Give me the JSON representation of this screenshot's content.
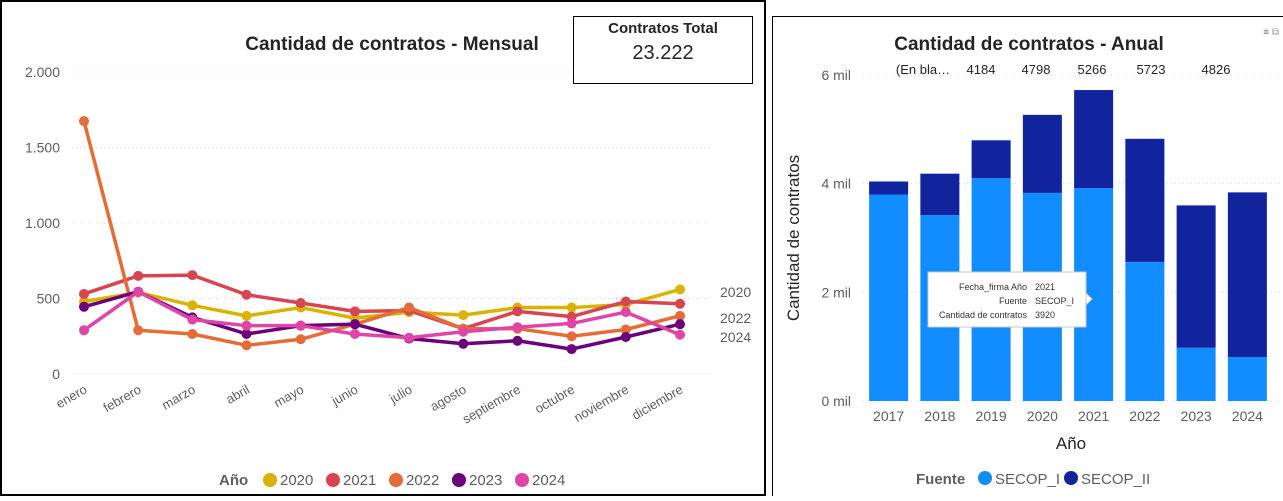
{
  "kpi": {
    "label": "Contratos Total",
    "value": "23.222"
  },
  "chart_data": [
    {
      "type": "line",
      "title": "Cantidad de contratos - Mensual",
      "xlabel": "",
      "ylabel": "",
      "categories": [
        "enero",
        "febrero",
        "marzo",
        "abril",
        "mayo",
        "junio",
        "julio",
        "agosto",
        "septiembre",
        "octubre",
        "noviembre",
        "diciembre"
      ],
      "ylim": [
        0,
        2000
      ],
      "yticks": [
        0,
        500,
        1000,
        1500,
        2000
      ],
      "ytick_labels": [
        "0",
        "500",
        "1.000",
        "1.500",
        "2.000"
      ],
      "legend_title": "Año",
      "legend_position": "bottom",
      "grid": true,
      "end_labels": [
        "2020",
        "2022",
        "2024"
      ],
      "series": [
        {
          "name": "2020",
          "color": "#D9B300",
          "values": [
            480,
            540,
            455,
            385,
            440,
            370,
            410,
            390,
            440,
            440,
            460,
            560
          ]
        },
        {
          "name": "2021",
          "color": "#D64550",
          "values": [
            530,
            650,
            655,
            525,
            470,
            415,
            420,
            300,
            415,
            380,
            480,
            465
          ]
        },
        {
          "name": "2022",
          "color": "#E66C37",
          "values": [
            1675,
            290,
            265,
            190,
            230,
            330,
            440,
            300,
            300,
            250,
            295,
            385
          ]
        },
        {
          "name": "2023",
          "color": "#6B007B",
          "values": [
            445,
            545,
            375,
            265,
            320,
            330,
            235,
            200,
            220,
            165,
            245,
            330
          ]
        },
        {
          "name": "2024",
          "color": "#E044A7",
          "values": [
            290,
            545,
            360,
            320,
            320,
            265,
            240,
            280,
            310,
            335,
            410,
            260
          ]
        }
      ]
    },
    {
      "type": "bar",
      "stacked": true,
      "title": "Cantidad de contratos - Anual",
      "xlabel": "Año",
      "ylabel": "Cantidad de contratos",
      "categories": [
        "2017",
        "2018",
        "2019",
        "2020",
        "2021",
        "2022",
        "2023",
        "2024"
      ],
      "ylim": [
        0,
        6000
      ],
      "yticks": [
        0,
        2000,
        4000,
        6000
      ],
      "ytick_labels": [
        "0 mil",
        "2 mil",
        "4 mil",
        "6 mil"
      ],
      "top_labels": [
        "(En bla…",
        "4184",
        "4798",
        "5266",
        "5723",
        "4826"
      ],
      "legend_title": "Fuente",
      "legend_position": "bottom",
      "grid": true,
      "series": [
        {
          "name": "SECOP_I",
          "color": "#118DFF",
          "values": [
            3800,
            3420,
            4100,
            3830,
            3920,
            2560,
            980,
            810
          ]
        },
        {
          "name": "SECOP_II",
          "color": "#12239E",
          "values": [
            240,
            764,
            698,
            1436,
            1803,
            2266,
            2620,
            3030
          ]
        }
      ]
    }
  ],
  "tooltip": {
    "rows": [
      {
        "label": "Fecha_firma Año",
        "value": "2021"
      },
      {
        "label": "Fuente",
        "value": "SECOP_I"
      },
      {
        "label": "Cantidad de contratos",
        "value": "3920"
      }
    ]
  },
  "pane_icons": "⩧ ⧉"
}
